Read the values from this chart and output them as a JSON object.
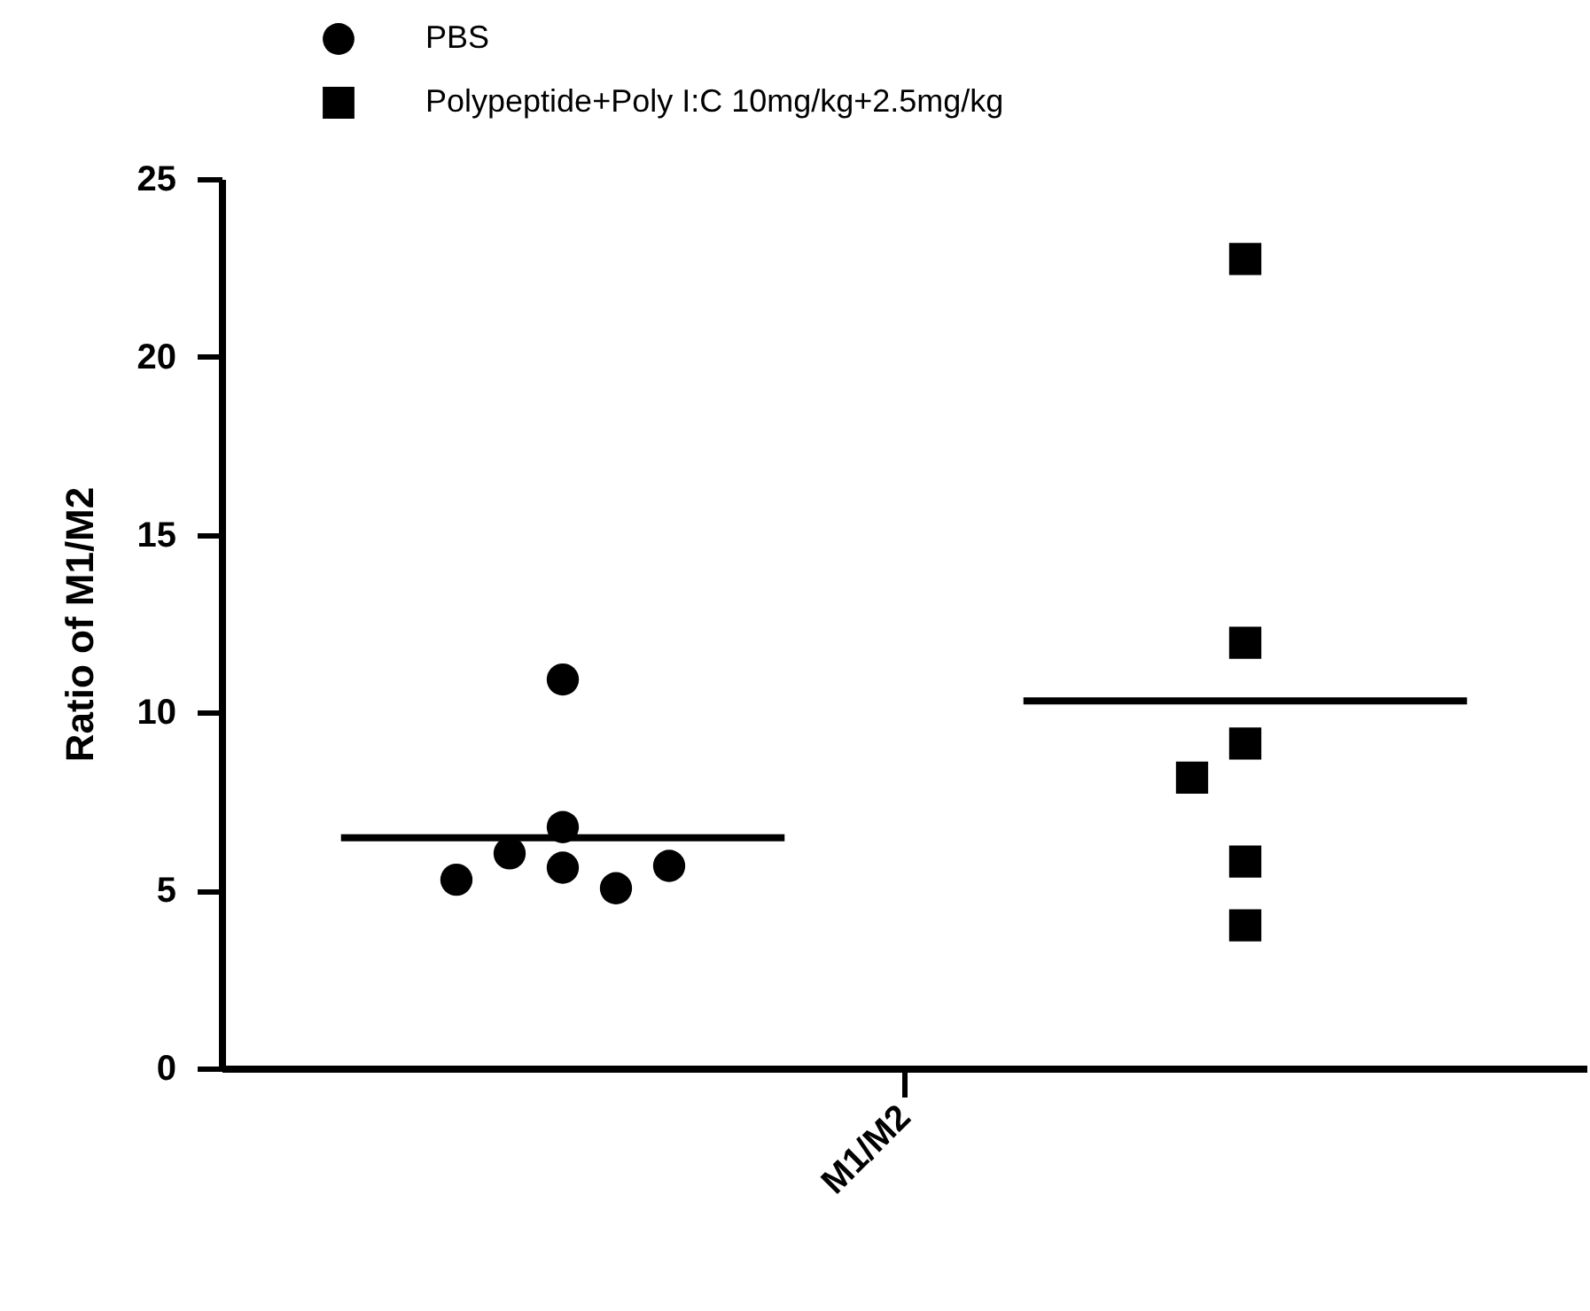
{
  "chart_data": {
    "type": "scatter",
    "ylabel": "Ratio of M1/M2",
    "categories": [
      "M1/M2"
    ],
    "ylim": [
      0,
      25
    ],
    "yticks": [
      0,
      5,
      10,
      15,
      20,
      25
    ],
    "legend": "top left",
    "grid": false,
    "series": [
      {
        "name": "PBS",
        "color": "#000000",
        "marker": "circle",
        "x": [
          "M1/M2",
          "M1/M2",
          "M1/M2",
          "M1/M2",
          "M1/M2",
          "M1/M2",
          "M1/M2"
        ],
        "values": [
          10.93,
          6.78,
          6.04,
          5.64,
          5.06,
          5.3,
          5.69
        ]
      },
      {
        "name": "Polypeptide+Poly I:C 10mg/kg+2.5mg/kg",
        "color": "#000000",
        "marker": "square",
        "x": [
          "M1/M2",
          "M1/M2",
          "M1/M2",
          "M1/M2",
          "M1/M2",
          "M1/M2"
        ],
        "values": [
          22.75,
          11.96,
          9.13,
          8.17,
          5.81,
          4.02
        ]
      }
    ],
    "ref_lines": [
      {
        "axis": "y",
        "value": 6.48,
        "color": "#000000"
      },
      {
        "axis": "y",
        "value": 10.33,
        "color": "#000000"
      }
    ]
  }
}
